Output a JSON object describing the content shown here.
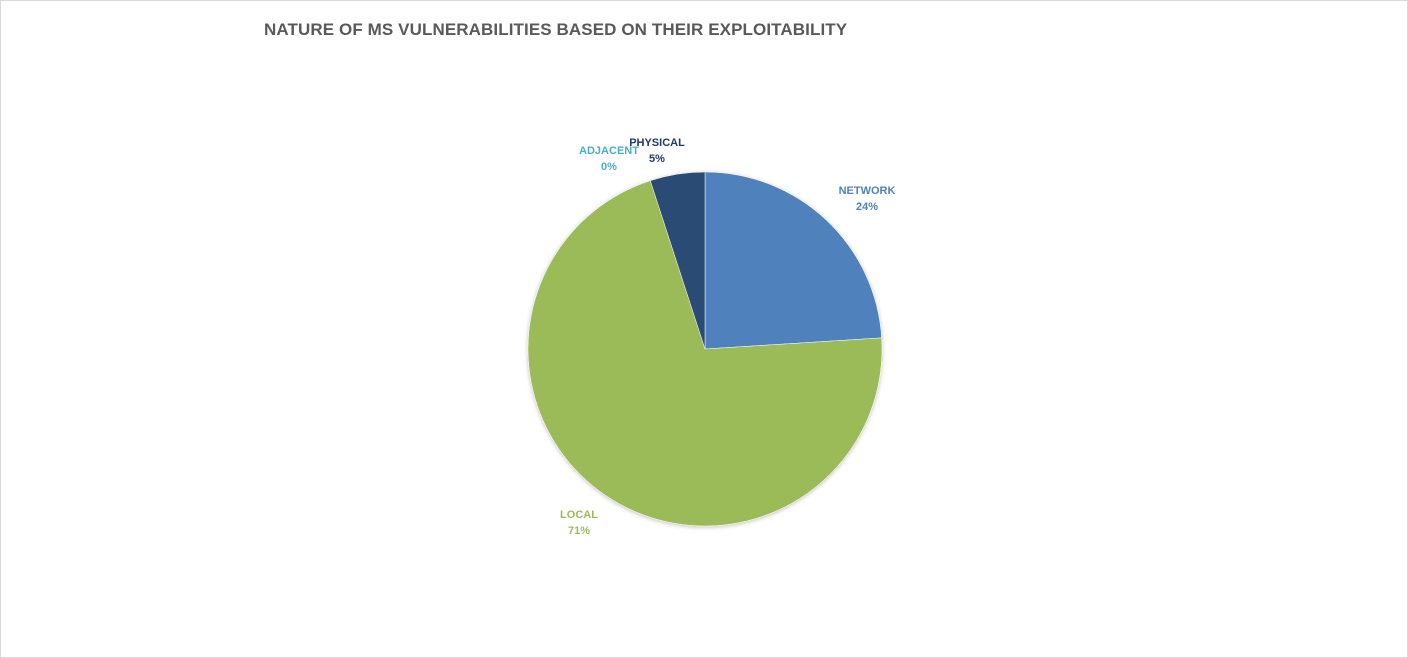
{
  "chart_data": {
    "type": "pie",
    "title": "NATURE OF MS VULNERABILITIES BASED ON THEIR EXPLOITABILITY",
    "categories": [
      "NETWORK",
      "LOCAL",
      "ADJACENT",
      "PHYSICAL"
    ],
    "values": [
      24,
      71,
      0,
      5
    ],
    "value_labels": [
      "24%",
      "71%",
      "0%",
      "5%"
    ],
    "colors": [
      "#4F81BD",
      "#9BBB59",
      "#4BACC6",
      "#2B4B73"
    ],
    "label_colors": [
      "#4F81BD",
      "#9BBB59",
      "#4BACC6",
      "#1F3864"
    ],
    "legend": "none"
  }
}
